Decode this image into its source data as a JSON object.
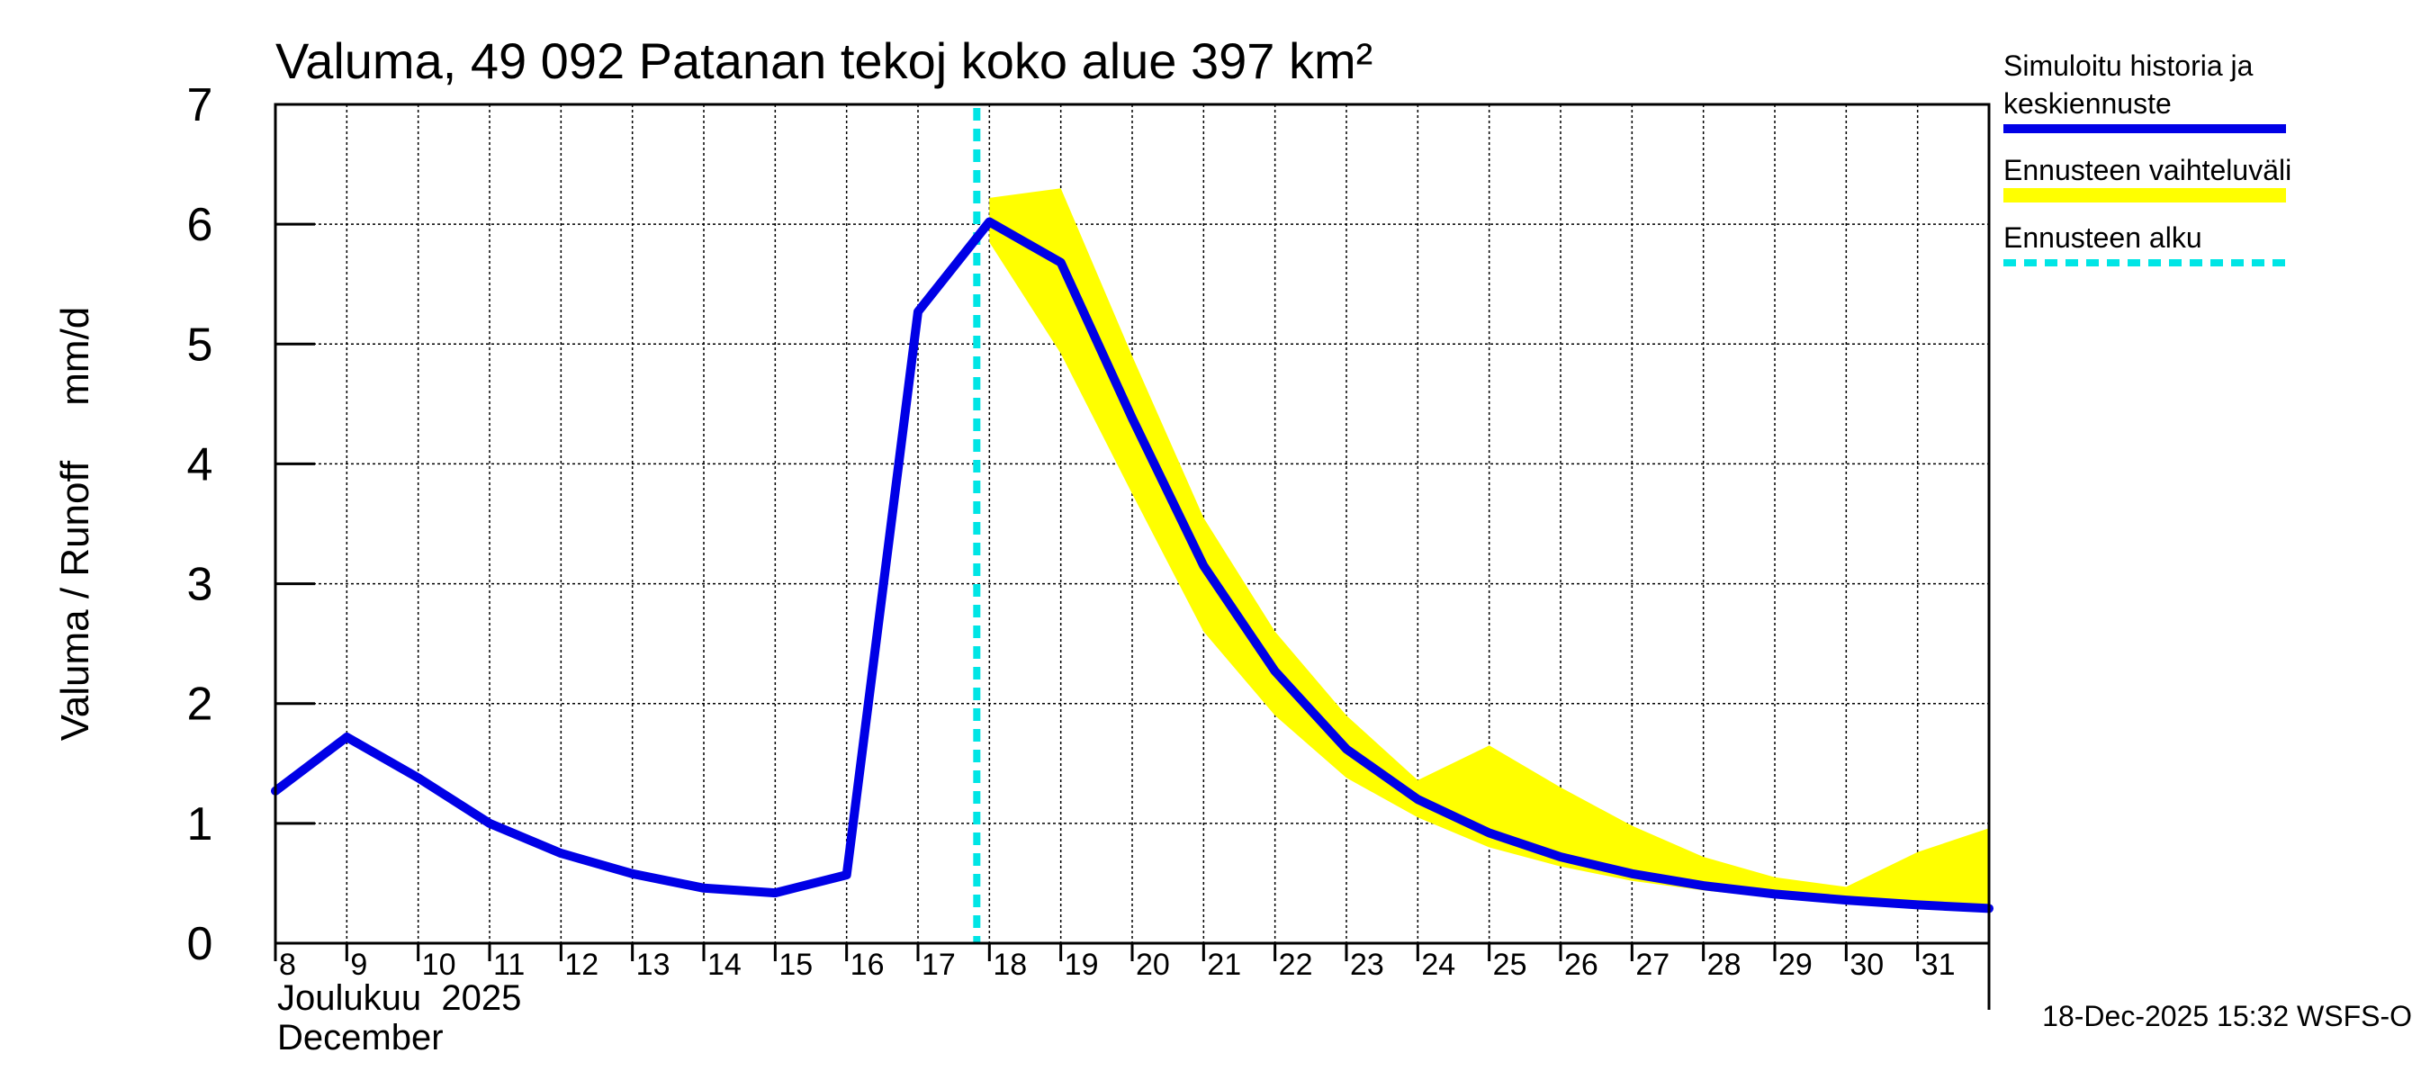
{
  "chart_data": {
    "type": "line",
    "title": "Valuma, 49 092 Patanan tekoj koko alue 397 km²",
    "ylabel": "Valuma / Runoff     mm/d",
    "ylim": [
      0,
      7
    ],
    "yticks": [
      "0",
      "1",
      "2",
      "3",
      "4",
      "5",
      "6",
      "7"
    ],
    "x_day_range": [
      8,
      32
    ],
    "xticks": [
      "8",
      "9",
      "10",
      "11",
      "12",
      "13",
      "14",
      "15",
      "16",
      "17",
      "18",
      "19",
      "20",
      "21",
      "22",
      "23",
      "24",
      "25",
      "26",
      "27",
      "28",
      "29",
      "30",
      "31"
    ],
    "month_label_fi": "Joulukuu  2025",
    "month_label_en": "December",
    "forecast_start_day": 18,
    "series": [
      {
        "name": "Simuloitu historia ja keskiennuste",
        "color": "#0000e6",
        "x": [
          8,
          9,
          10,
          11,
          12,
          13,
          14,
          15,
          16,
          17,
          18,
          19,
          20,
          21,
          22,
          23,
          24,
          25,
          26,
          27,
          28,
          29,
          30,
          31,
          32
        ],
        "values": [
          1.27,
          1.72,
          1.38,
          1.0,
          0.75,
          0.58,
          0.46,
          0.42,
          0.57,
          5.27,
          6.02,
          5.68,
          4.38,
          3.15,
          2.27,
          1.62,
          1.2,
          0.92,
          0.72,
          0.58,
          0.48,
          0.41,
          0.36,
          0.32,
          0.29
        ]
      }
    ],
    "band": {
      "name": "Ennusteen vaihteluväli",
      "color": "#ffff00",
      "x": [
        18,
        19,
        20,
        21,
        22,
        23,
        24,
        25,
        26,
        27,
        28,
        29,
        30,
        31,
        32
      ],
      "upper": [
        6.22,
        6.3,
        4.9,
        3.55,
        2.6,
        1.9,
        1.36,
        1.65,
        1.3,
        0.98,
        0.72,
        0.55,
        0.47,
        0.76,
        0.96
      ],
      "lower": [
        5.85,
        4.92,
        3.75,
        2.6,
        1.9,
        1.38,
        1.05,
        0.8,
        0.64,
        0.52,
        0.44,
        0.38,
        0.34,
        0.31,
        0.28
      ]
    },
    "legend": [
      {
        "label_line1": "Simuloitu historia ja",
        "label_line2": "keskiennuste",
        "color": "#0000e6",
        "style": "solid"
      },
      {
        "label_line1": "Ennusteen vaihteluväli",
        "label_line2": "",
        "color": "#ffff00",
        "style": "solid"
      },
      {
        "label_line1": "Ennusteen alku",
        "label_line2": "",
        "color": "#00e5e5",
        "style": "dashed"
      }
    ],
    "legend_position": "right",
    "grid": true
  },
  "footer": "18-Dec-2025 15:32 WSFS-O"
}
